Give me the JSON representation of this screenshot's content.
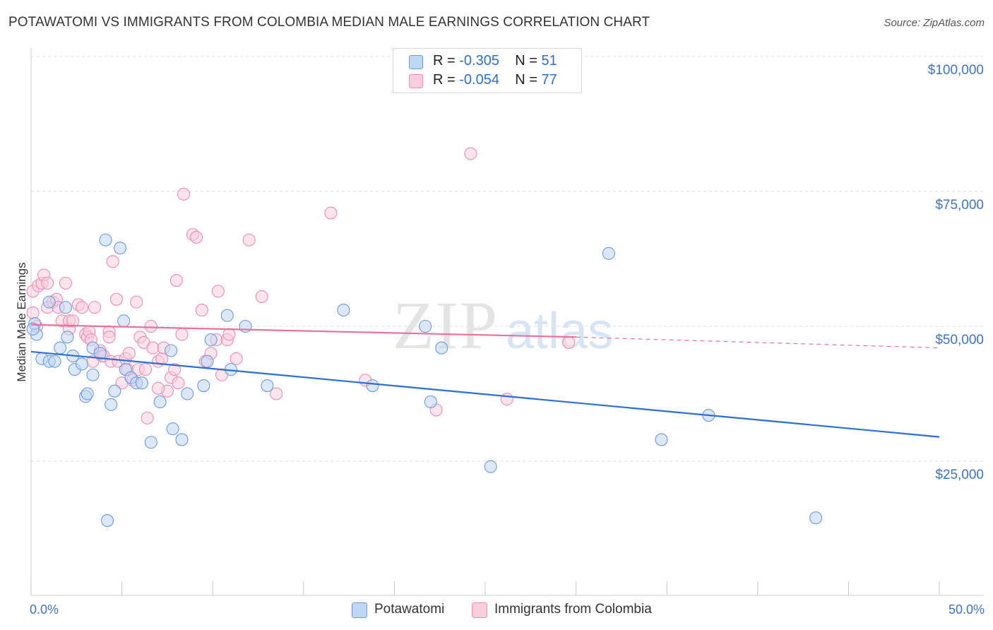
{
  "title": "POTAWATOMI VS IMMIGRANTS FROM COLOMBIA MEDIAN MALE EARNINGS CORRELATION CHART",
  "source": "Source: ZipAtlas.com",
  "watermark": {
    "zip": "ZIP",
    "atlas": "atlas"
  },
  "stats": {
    "potawatomi": {
      "r_label": "R =",
      "r": "-0.305",
      "n_label": "N =",
      "n": "51"
    },
    "colombia": {
      "r_label": "R =",
      "r": "-0.054",
      "n_label": "N =",
      "n": "77"
    }
  },
  "legend": {
    "potawatomi": "Potawatomi",
    "colombia": "Immigrants from Colombia"
  },
  "chart_data": {
    "type": "scatter",
    "title": "POTAWATOMI VS IMMIGRANTS FROM COLOMBIA MEDIAN MALE EARNINGS CORRELATION CHART",
    "xlabel": "",
    "ylabel": "Median Male Earnings",
    "xlim": [
      0,
      50
    ],
    "ylim": [
      0,
      105000
    ],
    "x_tick_labels": [
      "0.0%",
      "50.0%"
    ],
    "y_ticks": [
      25000,
      50000,
      75000,
      100000
    ],
    "y_tick_labels": [
      "$25,000",
      "$50,000",
      "$75,000",
      "$100,000"
    ],
    "grid": true,
    "colors": {
      "potawatomi": "#6c9be0",
      "colombia": "#f08db0",
      "potawatomi_line": "#2a6fd3",
      "colombia_line": "#e8729b",
      "potawatomi_fill": "#c0d6f5",
      "colombia_fill": "#f9cdda"
    },
    "series": [
      {
        "name": "Potawatomi",
        "key": "potawatomi",
        "points": [
          [
            0.2,
            50500
          ],
          [
            0.3,
            48500
          ],
          [
            0.6,
            44000
          ],
          [
            1.0,
            54500
          ],
          [
            1.0,
            43500
          ],
          [
            1.3,
            43500
          ],
          [
            1.6,
            46000
          ],
          [
            1.9,
            53500
          ],
          [
            2.0,
            48000
          ],
          [
            2.3,
            44500
          ],
          [
            2.4,
            42000
          ],
          [
            2.8,
            43000
          ],
          [
            3.0,
            37000
          ],
          [
            3.1,
            37500
          ],
          [
            3.4,
            41000
          ],
          [
            3.4,
            46000
          ],
          [
            3.8,
            45000
          ],
          [
            4.1,
            66000
          ],
          [
            4.2,
            14000
          ],
          [
            4.4,
            35500
          ],
          [
            4.6,
            38000
          ],
          [
            4.9,
            64500
          ],
          [
            5.1,
            51000
          ],
          [
            5.2,
            42000
          ],
          [
            5.5,
            40500
          ],
          [
            5.8,
            39500
          ],
          [
            6.1,
            39500
          ],
          [
            6.6,
            28500
          ],
          [
            7.1,
            36000
          ],
          [
            7.7,
            45500
          ],
          [
            7.8,
            31000
          ],
          [
            8.3,
            29000
          ],
          [
            8.6,
            37500
          ],
          [
            9.5,
            39000
          ],
          [
            9.7,
            43500
          ],
          [
            9.9,
            47500
          ],
          [
            10.8,
            52000
          ],
          [
            11.0,
            42000
          ],
          [
            11.8,
            50000
          ],
          [
            13.0,
            39000
          ],
          [
            17.2,
            53000
          ],
          [
            18.8,
            39000
          ],
          [
            21.7,
            50000
          ],
          [
            22.0,
            36000
          ],
          [
            22.6,
            46000
          ],
          [
            25.3,
            24000
          ],
          [
            31.8,
            63500
          ],
          [
            34.7,
            29000
          ],
          [
            37.3,
            33500
          ],
          [
            43.2,
            14500
          ],
          [
            0.1,
            49500
          ]
        ],
        "trend": {
          "x": [
            0,
            50
          ],
          "y": [
            45300,
            29500
          ]
        }
      },
      {
        "name": "Immigrants from Colombia",
        "key": "colombia",
        "points": [
          [
            0.1,
            56500
          ],
          [
            0.1,
            52500
          ],
          [
            0.3,
            50000
          ],
          [
            0.4,
            57500
          ],
          [
            0.6,
            58000
          ],
          [
            0.7,
            59500
          ],
          [
            0.9,
            53500
          ],
          [
            0.9,
            58000
          ],
          [
            1.2,
            54500
          ],
          [
            1.4,
            55000
          ],
          [
            1.5,
            53500
          ],
          [
            1.7,
            51000
          ],
          [
            1.9,
            58000
          ],
          [
            2.1,
            49500
          ],
          [
            2.1,
            51000
          ],
          [
            2.3,
            51000
          ],
          [
            2.6,
            54000
          ],
          [
            2.8,
            53500
          ],
          [
            3.0,
            48500
          ],
          [
            3.1,
            48000
          ],
          [
            3.2,
            49000
          ],
          [
            3.3,
            47500
          ],
          [
            3.4,
            43500
          ],
          [
            3.5,
            53500
          ],
          [
            3.8,
            45500
          ],
          [
            3.9,
            44500
          ],
          [
            4.0,
            44500
          ],
          [
            4.3,
            49000
          ],
          [
            4.3,
            48000
          ],
          [
            4.4,
            43500
          ],
          [
            4.5,
            62000
          ],
          [
            4.7,
            55000
          ],
          [
            4.8,
            43500
          ],
          [
            5.0,
            39500
          ],
          [
            5.2,
            44000
          ],
          [
            5.3,
            42000
          ],
          [
            5.4,
            45000
          ],
          [
            5.6,
            40000
          ],
          [
            5.8,
            54500
          ],
          [
            5.9,
            42000
          ],
          [
            6.0,
            48000
          ],
          [
            6.2,
            47000
          ],
          [
            6.3,
            42000
          ],
          [
            6.4,
            33000
          ],
          [
            6.6,
            50000
          ],
          [
            6.7,
            46000
          ],
          [
            7.0,
            43500
          ],
          [
            7.2,
            44000
          ],
          [
            7.3,
            46000
          ],
          [
            7.5,
            38000
          ],
          [
            7.7,
            40500
          ],
          [
            7.9,
            42000
          ],
          [
            8.1,
            39500
          ],
          [
            8.3,
            48500
          ],
          [
            8.4,
            74500
          ],
          [
            8.9,
            67000
          ],
          [
            9.1,
            66500
          ],
          [
            9.4,
            53000
          ],
          [
            9.6,
            43500
          ],
          [
            9.9,
            45000
          ],
          [
            10.2,
            47500
          ],
          [
            10.3,
            56500
          ],
          [
            10.5,
            41000
          ],
          [
            10.8,
            47500
          ],
          [
            10.9,
            48500
          ],
          [
            11.3,
            44000
          ],
          [
            12.0,
            66000
          ],
          [
            12.7,
            55500
          ],
          [
            13.5,
            37500
          ],
          [
            16.5,
            71000
          ],
          [
            18.4,
            40000
          ],
          [
            22.3,
            34500
          ],
          [
            24.2,
            82000
          ],
          [
            26.2,
            36500
          ],
          [
            29.6,
            47000
          ],
          [
            7.0,
            38500
          ],
          [
            8.0,
            58500
          ]
        ],
        "trend": {
          "x": [
            0,
            30
          ],
          "y": [
            50300,
            48000
          ]
        },
        "trend_dashed": {
          "x": [
            30,
            50
          ],
          "y": [
            48000,
            46000
          ]
        }
      }
    ]
  }
}
